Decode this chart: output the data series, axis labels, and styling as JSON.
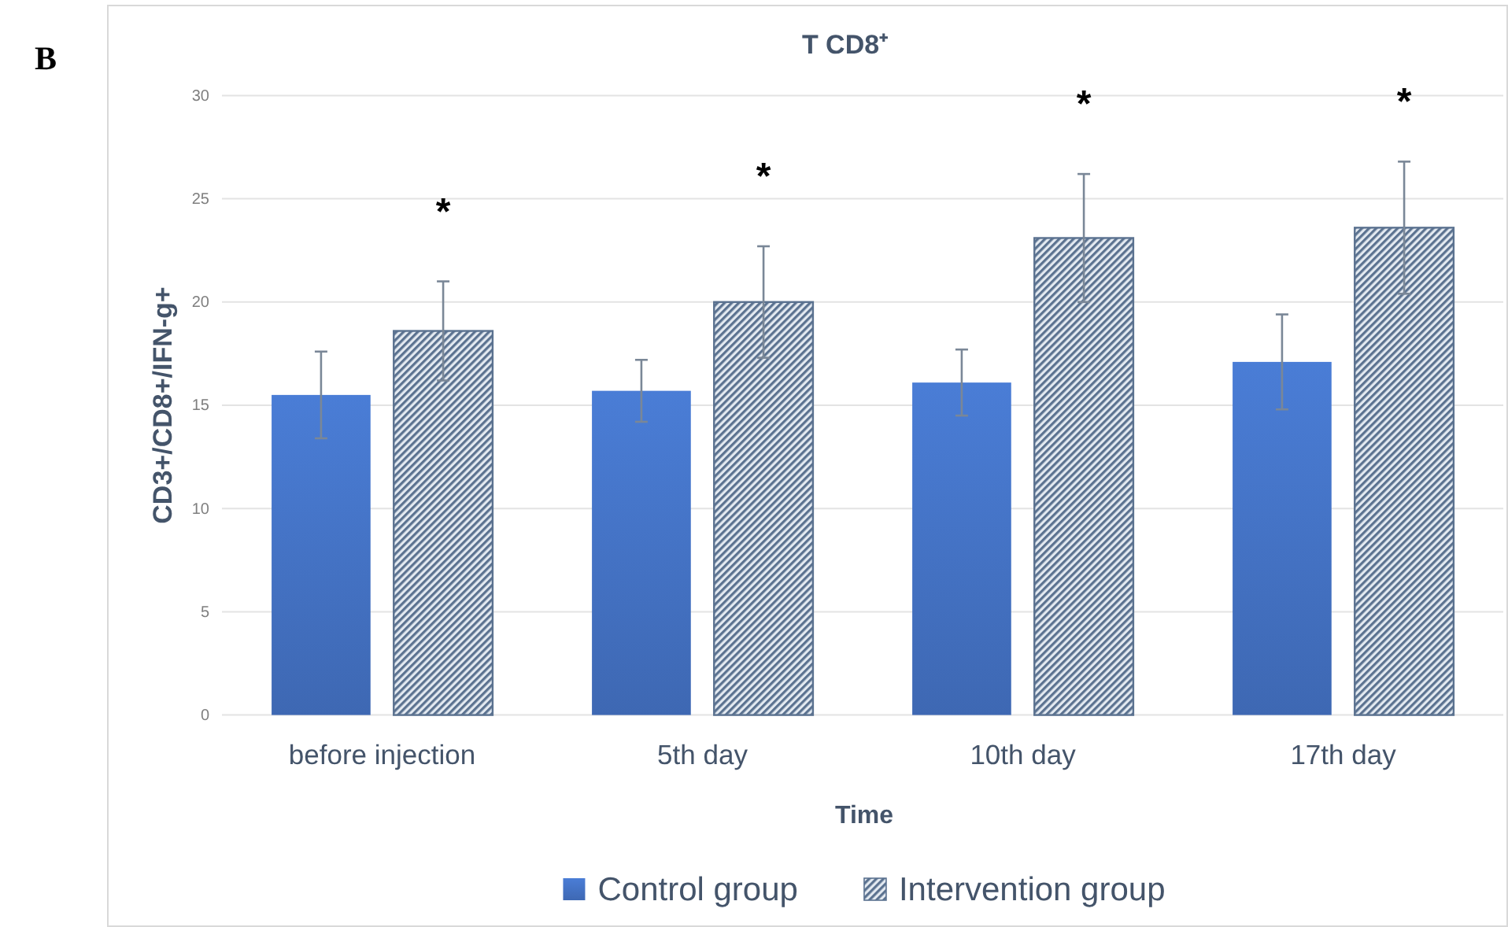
{
  "chart_data": {
    "type": "bar",
    "title": "T CD8⁺",
    "xlabel": "Time",
    "ylabel": "CD3+/CD8+/IFN-g+",
    "categories": [
      "before injection",
      "5th day",
      "10th day",
      "17th day"
    ],
    "series": [
      {
        "name": "Control group",
        "color": "#4472c4",
        "values": [
          15.5,
          15.7,
          16.1,
          17.1
        ],
        "errors": [
          2.1,
          1.5,
          1.6,
          2.3
        ]
      },
      {
        "name": "Intervention group",
        "color": "#5b7290",
        "values": [
          18.6,
          20,
          23.1,
          23.6
        ],
        "errors": [
          2.4,
          2.7,
          3.1,
          3.2
        ]
      }
    ],
    "ylim": [
      0,
      30
    ],
    "yticks": [
      0,
      5,
      10,
      15,
      20,
      25,
      30
    ],
    "grid": "y",
    "legend": "bottom",
    "annotations": [
      "B",
      "*",
      "*",
      "*",
      "*"
    ]
  }
}
